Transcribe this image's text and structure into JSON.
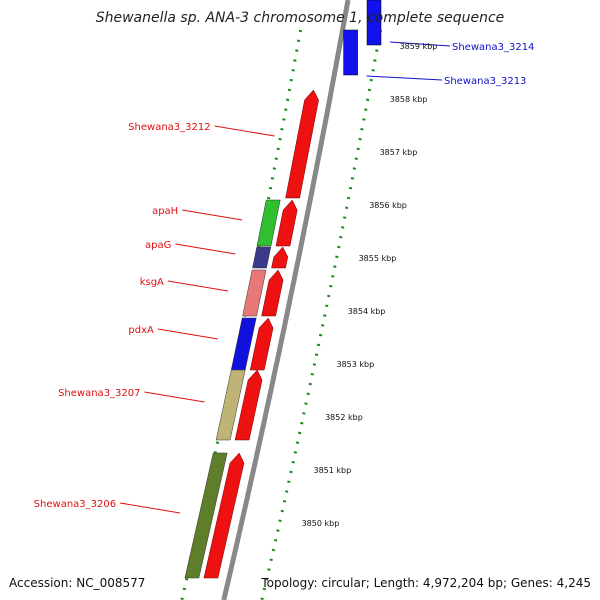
{
  "title": "Shewanella sp. ANA-3 chromosome 1, complete sequence",
  "footer": {
    "accession": "Accession: NC_008577",
    "summary": "Topology: circular; Length: 4,972,204 bp; Genes: 4,245"
  },
  "colors": {
    "forward_gene": "#ee1111",
    "reverse_gene": "#1111ee",
    "feature_label": "#dd1111",
    "reverse_label": "#1111cc",
    "ruler": "#1a8a1a",
    "backbone": "#888888"
  },
  "genes": [
    {
      "name": "Shewana3_3214",
      "strand": "reverse"
    },
    {
      "name": "Shewana3_3213",
      "strand": "reverse"
    },
    {
      "name": "Shewana3_3212",
      "strand": "forward"
    },
    {
      "name": "apaH",
      "strand": "forward",
      "color": "#2fbf2f"
    },
    {
      "name": "apaG",
      "strand": "forward",
      "color": "#3a3a8a"
    },
    {
      "name": "ksgA",
      "strand": "forward",
      "color": "#e87878"
    },
    {
      "name": "pdxA",
      "strand": "forward",
      "color": "#1111dd"
    },
    {
      "name": "Shewana3_3207",
      "strand": "forward",
      "color": "#bdb476"
    },
    {
      "name": "Shewana3_3206",
      "strand": "forward",
      "color": "#5e7e2a"
    }
  ],
  "ruler_ticks": [
    "3859 kbp",
    "3858 kbp",
    "3857 kbp",
    "3856 kbp",
    "3855 kbp",
    "3854 kbp",
    "3853 kbp",
    "3852 kbp",
    "3851 kbp",
    "3850 kbp"
  ]
}
